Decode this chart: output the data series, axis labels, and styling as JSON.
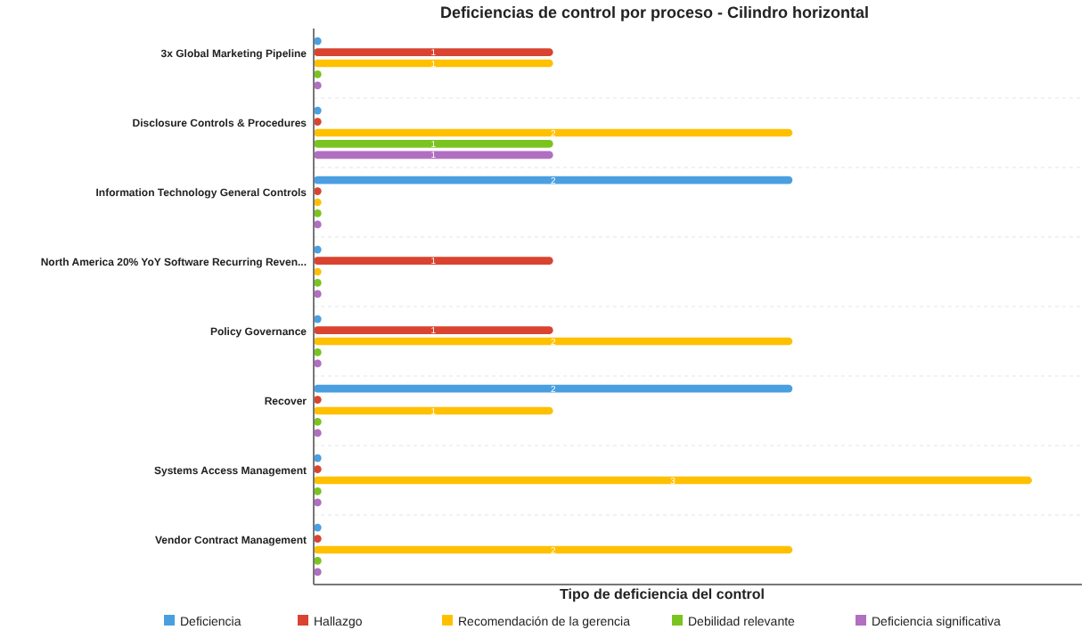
{
  "chart_data": {
    "type": "bar",
    "orientation": "horizontal",
    "title": "Deficiencias de control por proceso - Cilindro horizontal",
    "xlabel": "Tipo de deficiencia del control",
    "categories": [
      "3x Global Marketing Pipeline",
      "Disclosure Controls & Procedures",
      "Information Technology General Controls",
      "North America 20% YoY Software Recurring Reven...",
      "Policy Governance",
      "Recover",
      "Systems Access Management",
      "Vendor Contract Management"
    ],
    "series": [
      {
        "name": "Deficiencia",
        "color": "#4a9fe0",
        "values": [
          0,
          0,
          2,
          0,
          0,
          2,
          0,
          0
        ],
        "value_labels": [
          null,
          null,
          "2",
          null,
          null,
          "2",
          null,
          null
        ]
      },
      {
        "name": "Hallazgo",
        "color": "#d9432f",
        "values": [
          1,
          0,
          0,
          1,
          1,
          0,
          0,
          0
        ],
        "value_labels": [
          "1",
          null,
          null,
          "1",
          "1",
          null,
          null,
          null
        ]
      },
      {
        "name": "Recomendación de la gerencia",
        "color": "#ffc000",
        "values": [
          1,
          2,
          0,
          0,
          2,
          1,
          3,
          2
        ],
        "value_labels": [
          "1",
          "2",
          null,
          null,
          "2",
          "1",
          "3",
          "2"
        ]
      },
      {
        "name": "Debilidad relevante",
        "color": "#7ac41f",
        "values": [
          0,
          1,
          0,
          0,
          0,
          0,
          0,
          0
        ],
        "value_labels": [
          null,
          "1",
          null,
          null,
          null,
          null,
          null,
          null
        ]
      },
      {
        "name": "Deficiencia significativa",
        "color": "#b06fc0",
        "values": [
          0,
          1,
          0,
          0,
          0,
          0,
          0,
          0
        ],
        "value_labels": [
          null,
          "1",
          null,
          null,
          null,
          null,
          null,
          null
        ]
      }
    ],
    "legend": "bottom"
  }
}
